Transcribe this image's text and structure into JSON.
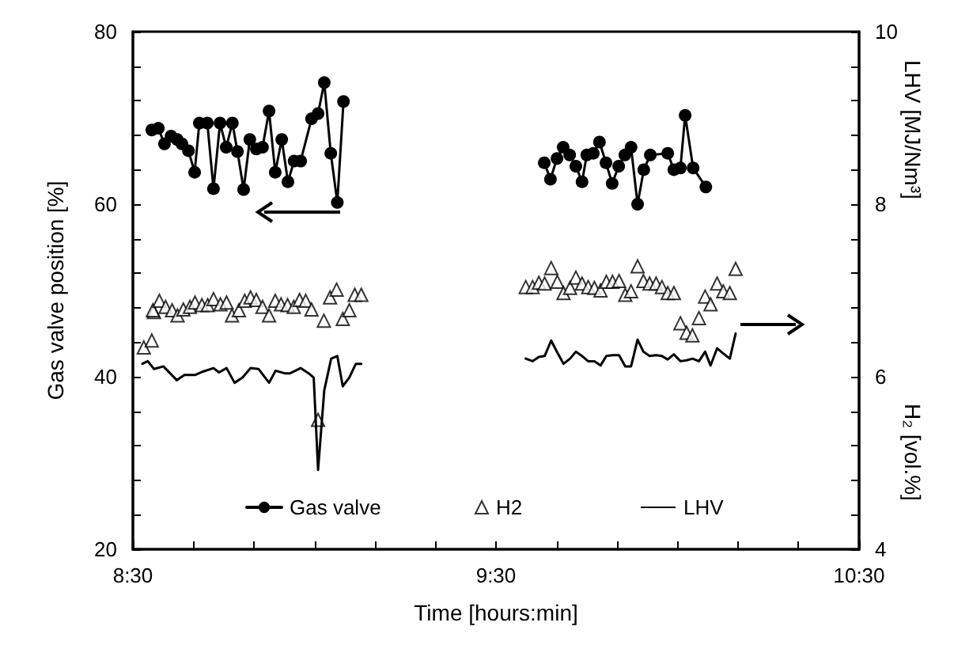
{
  "chart_data": {
    "type": "line",
    "xlabel": "Time [hours:min]",
    "ylabel": "Gas valve position [%]",
    "y2label": "LHV [MJ/Nm³]",
    "annotations": [
      "H₂ [vol.%]"
    ],
    "xlim": [
      8.5,
      10.5
    ],
    "xticks": [
      {
        "value": 8.5,
        "label": "8:30"
      },
      {
        "value": 8.6667,
        "label": null
      },
      {
        "value": 8.8333,
        "label": null
      },
      {
        "value": 9,
        "label": null
      },
      {
        "value": 9.1667,
        "label": null
      },
      {
        "value": 9.3333,
        "label": null
      },
      {
        "value": 9.5,
        "label": "9:30"
      },
      {
        "value": 9.6667,
        "label": null
      },
      {
        "value": 9.8333,
        "label": null
      },
      {
        "value": 10,
        "label": null
      },
      {
        "value": 10.1667,
        "label": null
      },
      {
        "value": 10.3333,
        "label": null
      },
      {
        "value": 10.5,
        "label": "10:30"
      }
    ],
    "ylim": [
      20,
      80
    ],
    "yticks": [
      20,
      {
        "value": 24,
        "label": null
      },
      {
        "value": 28,
        "label": null
      },
      {
        "value": 32,
        "label": null
      },
      {
        "value": 36,
        "label": null
      },
      40,
      {
        "value": 44,
        "label": null
      },
      {
        "value": 48,
        "label": null
      },
      {
        "value": 52,
        "label": null
      },
      {
        "value": 56,
        "label": null
      },
      60,
      {
        "value": 64,
        "label": null
      },
      {
        "value": 68,
        "label": null
      },
      {
        "value": 72,
        "label": null
      },
      {
        "value": 76,
        "label": null
      },
      80
    ],
    "y2lim": [
      4,
      10
    ],
    "y2ticks": [
      4,
      {
        "value": 4.4,
        "label": null
      },
      {
        "value": 4.8,
        "label": null
      },
      {
        "value": 5.2,
        "label": null
      },
      {
        "value": 5.6,
        "label": null
      },
      6,
      {
        "value": 6.4,
        "label": null
      },
      {
        "value": 6.8,
        "label": null
      },
      {
        "value": 7.2,
        "label": null
      },
      {
        "value": 7.6,
        "label": null
      },
      8,
      {
        "value": 8.4,
        "label": null
      },
      {
        "value": 8.8,
        "label": null
      },
      {
        "value": 9.2,
        "label": null
      },
      {
        "value": 9.6,
        "label": null
      },
      10
    ],
    "grid": false,
    "legend": "bottom",
    "series": [
      {
        "name": "Gas valve",
        "marker": "circle",
        "color": "#000000",
        "x": [
          8.552,
          8.57,
          8.587,
          8.605,
          8.622,
          8.635,
          8.653,
          8.67,
          8.683,
          8.705,
          8.722,
          8.74,
          8.757,
          8.774,
          8.788,
          8.805,
          8.822,
          8.84,
          8.857,
          8.875,
          8.892,
          8.91,
          8.927,
          8.944,
          8.962,
          8.992,
          9.01,
          9.027,
          9.045,
          9.063,
          9.08,
          9.35,
          9.633,
          9.65,
          9.668,
          9.685,
          9.703,
          9.72,
          9.737,
          9.75,
          9.768,
          9.785,
          9.803,
          9.82,
          9.838,
          9.855,
          9.872,
          9.89,
          9.907,
          9.925,
          9.973,
          9.99,
          10.008,
          10.021,
          10.043,
          10.078
        ],
        "values": [
          68.6,
          68.8,
          67.0,
          67.9,
          67.5,
          67.0,
          66.2,
          63.7,
          69.4,
          69.4,
          61.8,
          69.4,
          66.6,
          69.4,
          66.1,
          61.7,
          67.5,
          66.4,
          66.6,
          70.8,
          63.7,
          67.5,
          62.6,
          65.0,
          65.0,
          69.9,
          70.5,
          74.1,
          65.9,
          60.2,
          71.9,
          null,
          64.8,
          62.9,
          65.3,
          66.6,
          65.7,
          64.4,
          62.6,
          65.7,
          65.9,
          67.2,
          64.8,
          62.4,
          64.4,
          65.7,
          66.6,
          60.0,
          64.0,
          65.7,
          65.9,
          64.0,
          64.2,
          70.3,
          64.2,
          62.0
        ]
      },
      {
        "name": "H2",
        "type": "scatter",
        "marker": "triangle",
        "axis": "y2",
        "color": "#000000",
        "x": [
          8.53,
          8.552,
          8.558,
          8.555,
          8.573,
          8.59,
          8.608,
          8.623,
          8.639,
          8.657,
          8.671,
          8.69,
          8.706,
          8.722,
          8.741,
          8.758,
          8.773,
          8.792,
          8.808,
          8.824,
          8.84,
          8.857,
          8.875,
          8.892,
          8.908,
          8.926,
          8.943,
          8.959,
          8.976,
          8.992,
          9.01,
          9.026,
          9.043,
          9.061,
          9.078,
          9.096,
          9.111,
          9.129,
          9.582,
          9.601,
          9.618,
          9.634,
          9.652,
          9.669,
          9.686,
          9.704,
          9.72,
          9.737,
          9.754,
          9.771,
          9.788,
          9.804,
          9.821,
          9.839,
          9.856,
          9.872,
          9.89,
          9.906,
          9.923,
          9.941,
          9.957,
          9.973,
          9.99,
          10.008,
          10.025,
          10.041,
          10.059,
          10.076,
          10.091,
          10.109,
          10.126,
          10.144,
          10.16
        ],
        "values": [
          6.34,
          6.42,
          6.75,
          6.77,
          6.88,
          6.81,
          6.77,
          6.71,
          6.78,
          6.81,
          6.86,
          6.83,
          6.83,
          6.9,
          6.84,
          6.86,
          6.71,
          6.77,
          6.88,
          6.92,
          6.89,
          6.81,
          6.71,
          6.88,
          6.84,
          6.83,
          6.81,
          6.89,
          6.88,
          6.78,
          5.5,
          6.65,
          6.92,
          7.01,
          6.67,
          6.77,
          6.95,
          6.95,
          7.04,
          7.04,
          7.09,
          7.08,
          7.26,
          7.1,
          6.97,
          7.03,
          7.15,
          7.08,
          7.04,
          7.03,
          7.0,
          7.1,
          7.1,
          7.11,
          6.95,
          6.99,
          7.28,
          7.11,
          7.08,
          7.08,
          7.04,
          6.97,
          6.97,
          6.62,
          6.51,
          6.48,
          6.68,
          6.93,
          6.84,
          7.08,
          6.99,
          6.97,
          7.25
        ]
      },
      {
        "name": "LHV",
        "marker": "none",
        "axis": "y2",
        "color": "#000000",
        "x": [
          8.526,
          8.541,
          8.558,
          8.584,
          8.621,
          8.642,
          8.671,
          8.693,
          8.722,
          8.737,
          8.758,
          8.78,
          8.802,
          8.824,
          8.846,
          8.875,
          8.893,
          8.918,
          8.933,
          8.962,
          8.984,
          8.998,
          9.01,
          9.027,
          9.046,
          9.063,
          9.078,
          9.096,
          9.114,
          9.129,
          9.35,
          9.582,
          9.601,
          9.618,
          9.634,
          9.652,
          9.669,
          9.686,
          9.704,
          9.72,
          9.737,
          9.754,
          9.771,
          9.788,
          9.804,
          9.821,
          9.839,
          9.856,
          9.872,
          9.89,
          9.906,
          9.923,
          9.941,
          9.957,
          9.973,
          9.99,
          10.008,
          10.025,
          10.041,
          10.059,
          10.076,
          10.091,
          10.109,
          10.126,
          10.144,
          10.16
        ],
        "values": [
          6.15,
          6.18,
          6.09,
          6.12,
          5.96,
          6.02,
          6.02,
          6.06,
          6.1,
          6.05,
          6.1,
          5.93,
          5.99,
          6.1,
          6.09,
          5.93,
          6.07,
          6.04,
          6.04,
          6.1,
          6.04,
          5.99,
          4.92,
          5.84,
          6.21,
          6.24,
          5.89,
          5.99,
          6.15,
          6.15,
          null,
          6.21,
          6.18,
          6.23,
          6.24,
          6.42,
          6.28,
          6.15,
          6.21,
          6.29,
          6.24,
          6.18,
          6.18,
          6.13,
          6.24,
          6.25,
          6.25,
          6.12,
          6.12,
          6.43,
          6.29,
          6.24,
          6.25,
          6.24,
          6.2,
          6.26,
          6.18,
          6.19,
          6.21,
          6.18,
          6.29,
          6.13,
          6.33,
          6.27,
          6.21,
          6.5
        ]
      }
    ]
  }
}
